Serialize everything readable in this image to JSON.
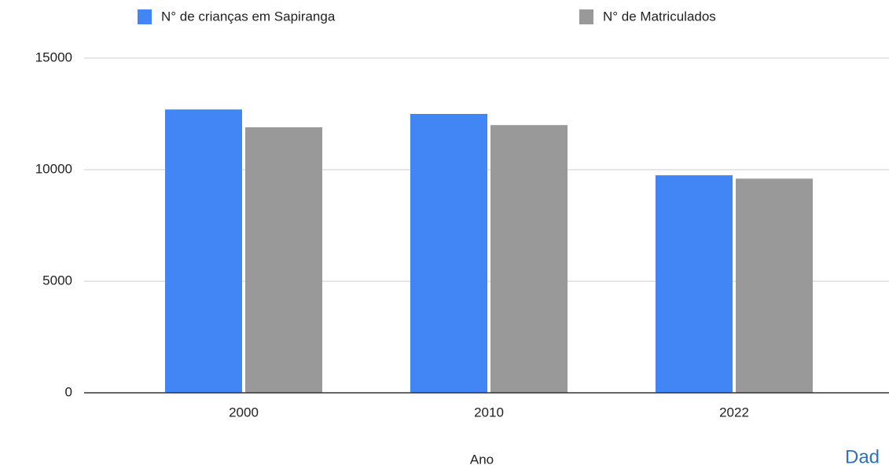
{
  "chart_data": {
    "type": "bar",
    "categories": [
      "2000",
      "2010",
      "2022"
    ],
    "series": [
      {
        "name": "N° de crianças em Sapiranga",
        "color": "#4285f4",
        "values": [
          12700,
          12500,
          9750
        ]
      },
      {
        "name": "N° de Matriculados",
        "color": "#999999",
        "values": [
          11900,
          12000,
          9600
        ]
      }
    ],
    "ylim": [
      0,
      15000
    ],
    "yticks": [
      0,
      5000,
      10000,
      15000
    ],
    "grid": true,
    "x_label": "Ano",
    "legend": "top",
    "annotation": "Dad"
  }
}
